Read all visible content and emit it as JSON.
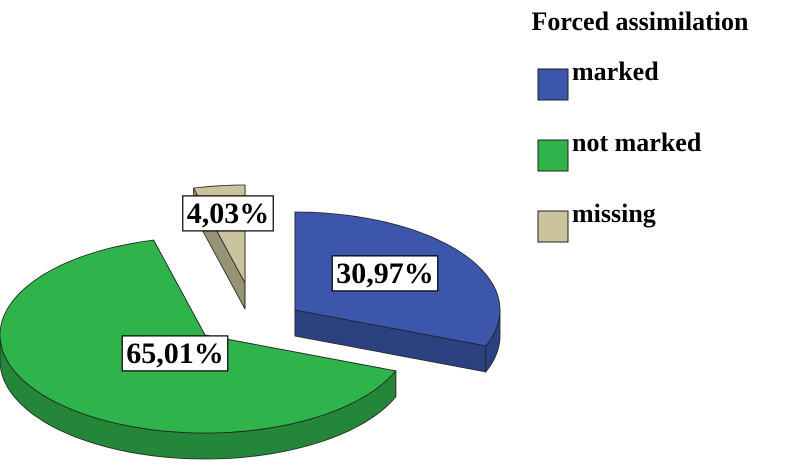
{
  "chart_data": {
    "type": "pie",
    "legend_title": "Forced assimilation",
    "categories": [
      "marked",
      "not marked",
      "missing"
    ],
    "values": [
      30.97,
      65.01,
      4.03
    ],
    "value_labels": [
      "30,97%",
      "65,01%",
      "4,03%"
    ],
    "colors": [
      "#3b56aa",
      "#2fb34b",
      "#cbc39e"
    ],
    "legend": "upper right"
  }
}
